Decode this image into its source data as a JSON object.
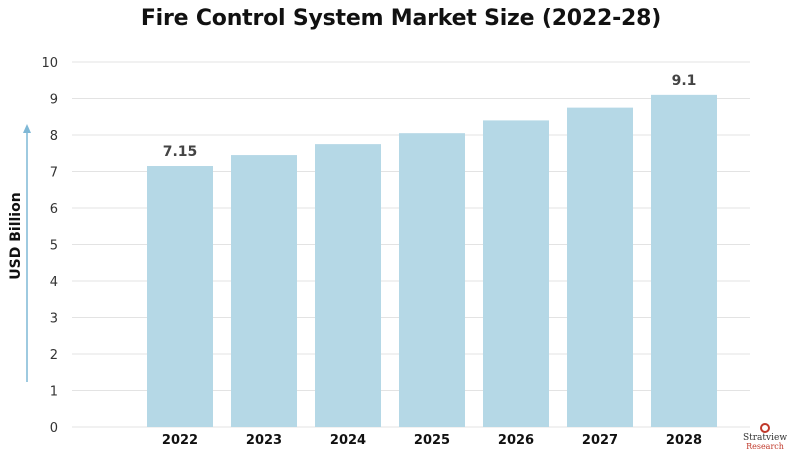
{
  "chart_data": {
    "type": "bar",
    "title": "Fire Control System Market Size (2022-28)",
    "xlabel": "",
    "ylabel": "USD Billion",
    "categories": [
      "2022",
      "2023",
      "2024",
      "2025",
      "2026",
      "2027",
      "2028"
    ],
    "values": [
      7.15,
      7.45,
      7.75,
      8.05,
      8.4,
      8.75,
      9.1
    ],
    "data_labels": [
      "7.15",
      "",
      "",
      "",
      "",
      "",
      "9.1"
    ],
    "ylim": [
      0,
      10
    ],
    "yticks": [
      "0",
      "1",
      "2",
      "3",
      "4",
      "5",
      "6",
      "7",
      "8",
      "9",
      "10"
    ],
    "grid": true,
    "bar_color": "#b5d8e6",
    "grid_color": "#e3e3e3",
    "axis_arrow_color": "#7fb8d6"
  },
  "logo": {
    "name": "Stratview",
    "sub": "Research"
  }
}
